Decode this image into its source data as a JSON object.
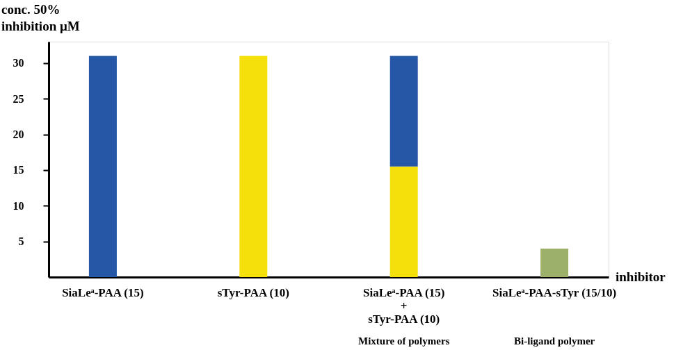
{
  "chart_data": {
    "type": "bar",
    "stacked": true,
    "legend": false,
    "grid": false,
    "ylabel": "conc. 50%\ninhibition μM",
    "xlabel": "inhibitor",
    "categories": [
      "SiaLeᵃ-PAA (15)",
      "sTyr-PAA (10)",
      "SiaLeᵃ-PAA (15)\n+\nsTyr-PAA (10)",
      "SiaLeᵃ-PAA-sTyr (15/10)"
    ],
    "series": [
      {
        "color": "#f6e00c",
        "values": [
          null,
          31,
          15.5,
          null
        ]
      },
      {
        "color": "#2458a6",
        "values": [
          31,
          null,
          15.5,
          null
        ]
      },
      {
        "color": "#9cb06a",
        "values": [
          null,
          null,
          null,
          4
        ]
      }
    ],
    "ylim": [
      0,
      33
    ],
    "yticks": [
      5,
      10,
      15,
      20,
      25,
      30
    ],
    "annotations": [
      "Mixture of polymers",
      "Bi-ligand polymer"
    ]
  }
}
